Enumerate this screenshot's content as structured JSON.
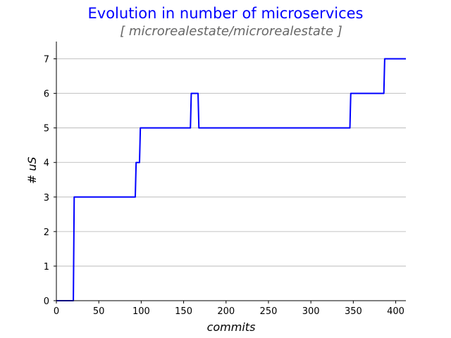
{
  "colors": {
    "title": "#0000ff",
    "subtitle": "#666666",
    "series": "#0000ff",
    "grid": "#b0b0b0",
    "axis": "#000000"
  },
  "chart_data": {
    "type": "line",
    "title": "Evolution in number of microservices",
    "subtitle": "[ microrealestate/microrealestate ]",
    "xlabel": "commits",
    "ylabel": "# uS",
    "xlim": [
      0,
      412
    ],
    "ylim": [
      0,
      7.5
    ],
    "xticks": [
      0,
      50,
      100,
      150,
      200,
      250,
      300,
      350,
      400
    ],
    "yticks": [
      0,
      1,
      2,
      3,
      4,
      5,
      6,
      7
    ],
    "grid": "y-major",
    "legend": "none",
    "series": [
      {
        "x": [
          0,
          20,
          21,
          93,
          94,
          98,
          99,
          158,
          159,
          167,
          168,
          346,
          347,
          386,
          387,
          412
        ],
        "y": [
          0,
          0,
          3,
          3,
          4,
          4,
          5,
          5,
          6,
          6,
          5,
          5,
          6,
          6,
          7,
          7
        ]
      }
    ]
  }
}
